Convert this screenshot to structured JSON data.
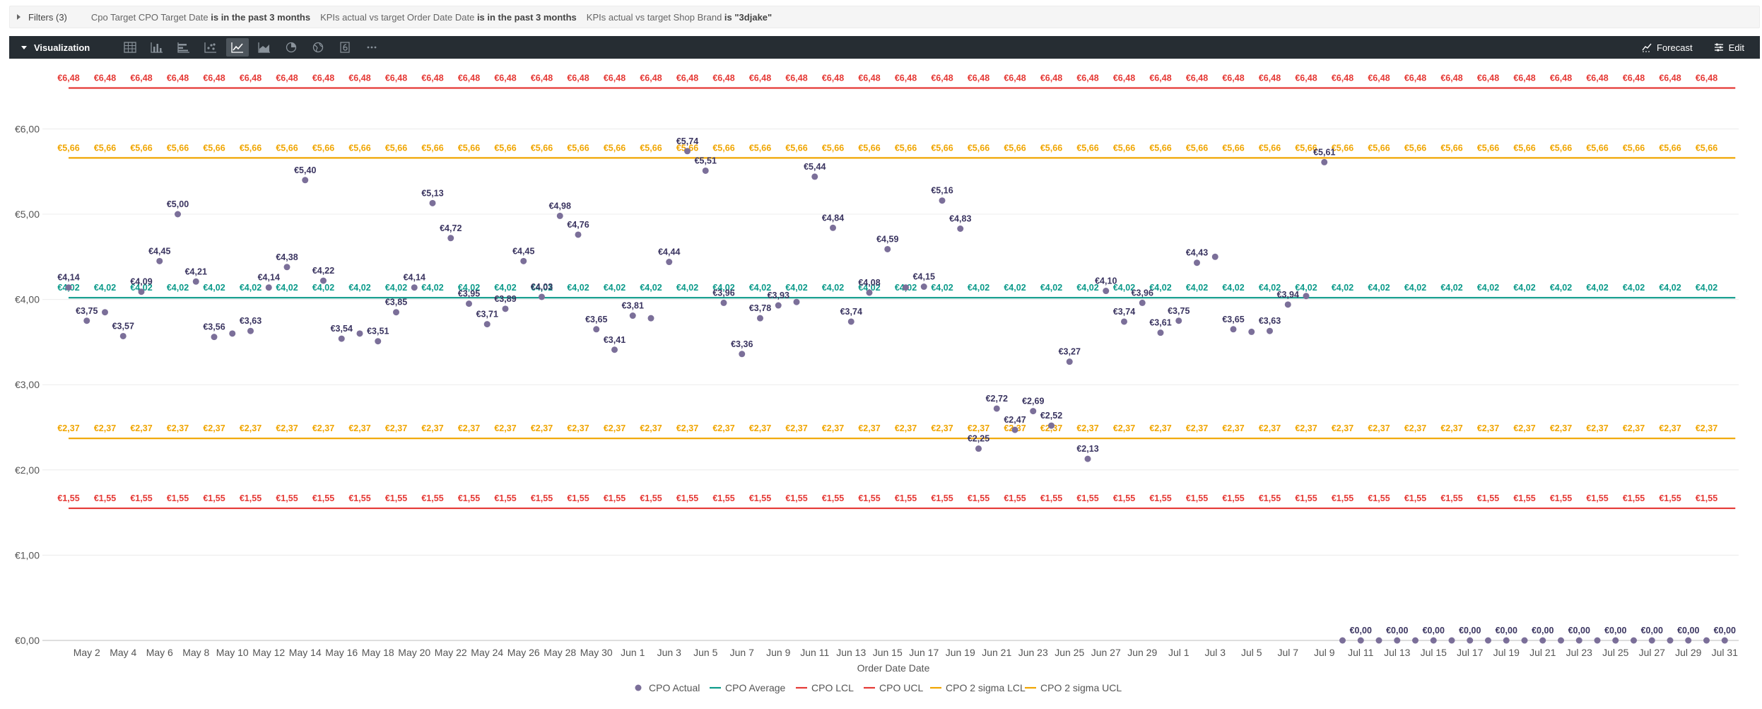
{
  "filters": {
    "title": "Filters (3)",
    "items": [
      {
        "field": "Cpo Target CPO Target Date",
        "op": "is in the past 3 months",
        "value": ""
      },
      {
        "field": "KPIs actual vs target Order Date Date",
        "op": "is in the past 3 months",
        "value": ""
      },
      {
        "field": "KPIs actual vs target Shop Brand",
        "op": "is",
        "value": "\"3djake\""
      }
    ]
  },
  "viz": {
    "title": "Visualization",
    "types": [
      "table-icon",
      "column-chart-icon",
      "bar-chart-icon",
      "scatter-icon",
      "line-chart-icon",
      "area-chart-icon",
      "pie-chart-icon",
      "map-icon",
      "single-value-icon",
      "more-icon"
    ],
    "active_type": "line-chart-icon",
    "forecast_label": "Forecast",
    "edit_label": "Edit"
  },
  "chart_data": {
    "type": "scatter",
    "xlabel": "Order Date Date",
    "ylabel": "",
    "ylim": [
      0,
      6.48
    ],
    "yticks": [
      "€0,00",
      "€1,00",
      "€2,00",
      "€3,00",
      "€4,00",
      "€5,00",
      "€6,00"
    ],
    "ytick_values": [
      0,
      1,
      2,
      3,
      4,
      5,
      6
    ],
    "x_start": "2025-05-01",
    "x_tick_labels": [
      "May 2",
      "May 4",
      "May 6",
      "May 8",
      "May 10",
      "May 12",
      "May 14",
      "May 16",
      "May 18",
      "May 20",
      "May 22",
      "May 24",
      "May 26",
      "May 28",
      "May 30",
      "Jun 1",
      "Jun 3",
      "Jun 5",
      "Jun 7",
      "Jun 9",
      "Jun 11",
      "Jun 13",
      "Jun 15",
      "Jun 17",
      "Jun 19",
      "Jun 21",
      "Jun 23",
      "Jun 25",
      "Jun 27",
      "Jun 29",
      "Jul 1",
      "Jul 3",
      "Jul 5",
      "Jul 7",
      "Jul 9",
      "Jul 11",
      "Jul 13",
      "Jul 15",
      "Jul 17",
      "Jul 19",
      "Jul 21",
      "Jul 23",
      "Jul 25",
      "Jul 27",
      "Jul 29",
      "Jul 31"
    ],
    "legend_position": "bottom-center",
    "series": [
      {
        "name": "CPO Actual",
        "kind": "points",
        "color": "#7b6f99",
        "values": [
          4.14,
          3.75,
          3.85,
          3.57,
          4.09,
          4.45,
          5.0,
          4.21,
          3.56,
          3.6,
          3.63,
          4.14,
          4.38,
          5.4,
          4.22,
          3.54,
          3.6,
          3.51,
          3.85,
          4.14,
          5.13,
          4.72,
          3.95,
          3.71,
          3.89,
          4.45,
          4.03,
          4.98,
          4.76,
          3.65,
          3.41,
          3.81,
          3.78,
          4.44,
          5.74,
          5.51,
          3.96,
          3.36,
          3.78,
          3.93,
          3.97,
          5.44,
          4.84,
          3.74,
          4.08,
          4.59,
          4.14,
          4.15,
          5.16,
          4.83,
          2.25,
          2.72,
          2.47,
          2.69,
          2.52,
          3.27,
          2.13,
          4.1,
          3.74,
          3.96,
          3.61,
          3.75,
          4.43,
          4.5,
          3.65,
          3.62,
          3.63,
          3.94,
          4.04,
          5.61,
          0,
          0,
          0,
          0,
          0,
          0,
          0,
          0,
          0,
          0,
          0,
          0,
          0,
          0,
          0,
          0,
          0,
          0,
          0,
          0,
          0,
          0
        ],
        "labels": [
          "€4,14",
          "€3,75",
          "",
          "€3,57",
          "€4,09",
          "€4,45",
          "€5,00",
          "€4,21",
          "€3,56",
          "",
          "€3,63",
          "€4,14",
          "€4,38",
          "€5,40",
          "€4,22",
          "€3,54",
          "",
          "€3,51",
          "€3,85",
          "€4,14",
          "€5,13",
          "€4,72",
          "€3,95",
          "€3,71",
          "€3,89",
          "€4,45",
          "€4,03",
          "€4,98",
          "€4,76",
          "€3,65",
          "€3,41",
          "€3,81",
          "",
          "€4,44",
          "€5,74",
          "€5,51",
          "€3,96",
          "€3,36",
          "€3,78",
          "€3,93",
          "",
          "€5,44",
          "€4,84",
          "€3,74",
          "€4,08",
          "€4,59",
          "",
          "€4,15",
          "€5,16",
          "€4,83",
          "€2,25",
          "€2,72",
          "€2,47",
          "€2,69",
          "€2,52",
          "€3,27",
          "€2,13",
          "€4,10",
          "€3,74",
          "€3,96",
          "€3,61",
          "€3,75",
          "€4,43",
          "",
          "€3,65",
          "",
          "€3,63",
          "€3,94",
          "",
          "€5,61",
          "",
          "€0,00",
          "",
          "€0,00",
          "",
          "€0,00",
          "",
          "€0,00",
          "",
          "€0,00",
          "",
          "€0,00",
          "",
          "€0,00",
          "",
          "€0,00",
          "",
          "€0,00",
          "",
          "€0,00",
          "",
          "€0,00"
        ]
      },
      {
        "name": "CPO Average",
        "kind": "line",
        "color": "#0b9a8a",
        "value": 4.02,
        "label": "€4,02"
      },
      {
        "name": "CPO LCL",
        "kind": "line",
        "color": "#e53935",
        "value": 1.55,
        "label": "€1,55"
      },
      {
        "name": "CPO UCL",
        "kind": "line",
        "color": "#e53935",
        "value": 6.48,
        "label": "€6,48"
      },
      {
        "name": "CPO 2 sigma LCL",
        "kind": "line",
        "color": "#f0a500",
        "value": 2.37,
        "label": "€2,37"
      },
      {
        "name": "CPO 2 sigma UCL",
        "kind": "line",
        "color": "#f0a500",
        "value": 5.66,
        "label": "€5,66"
      }
    ]
  }
}
